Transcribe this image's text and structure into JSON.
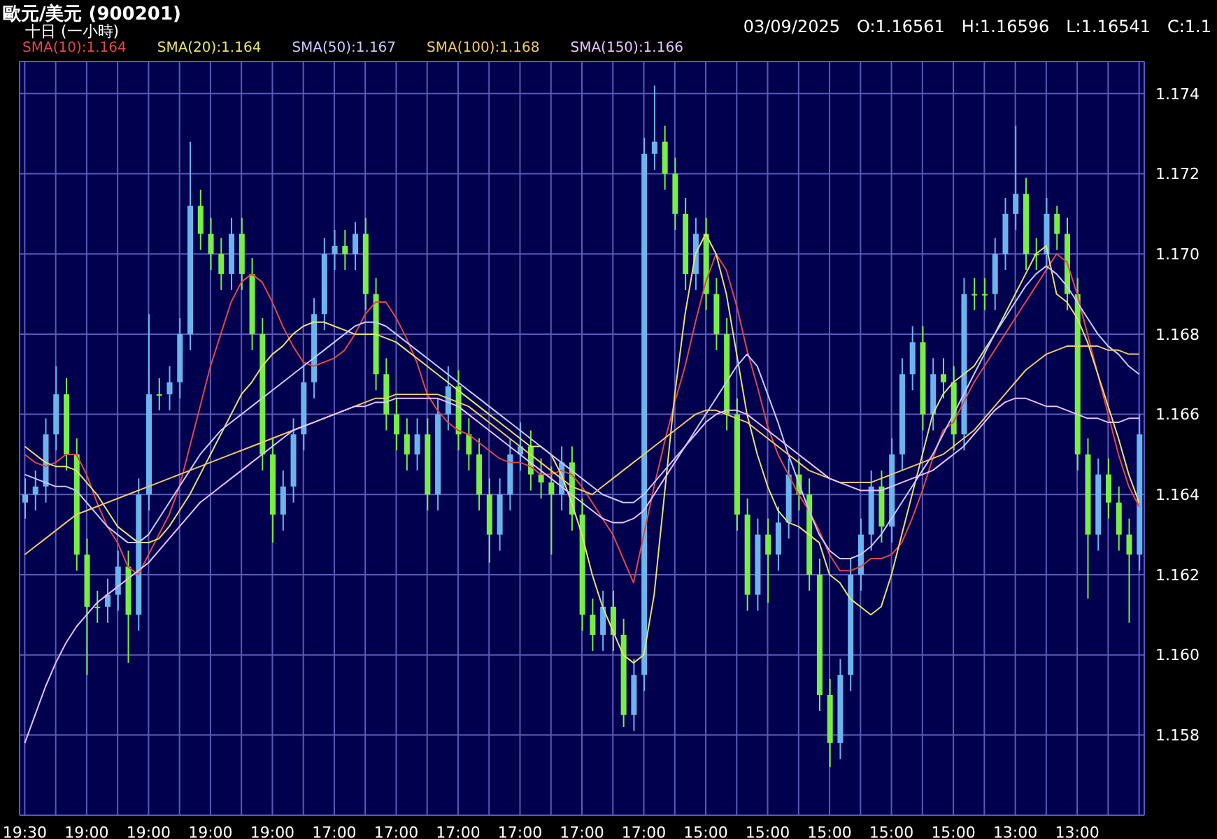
{
  "chart_data": {
    "type": "candlestick",
    "title": "歐元/美元 (900201)",
    "subtitle": "十日 (一小時)",
    "annotations": [
      "03/09/2025",
      "O:1.16561",
      "H:1.16596",
      "L:1.16541",
      "C:1.1"
    ],
    "categories": [
      "19:30",
      null,
      null,
      null,
      null,
      null,
      "19:00",
      null,
      null,
      null,
      null,
      null,
      "19:00",
      null,
      null,
      null,
      null,
      null,
      "19:00",
      null,
      null,
      null,
      null,
      null,
      "19:00",
      null,
      null,
      null,
      null,
      null,
      "17:00",
      null,
      null,
      null,
      null,
      null,
      "17:00",
      null,
      null,
      null,
      null,
      null,
      "17:00",
      null,
      null,
      null,
      null,
      null,
      "17:00",
      null,
      null,
      null,
      null,
      null,
      "17:00",
      null,
      null,
      null,
      null,
      null,
      "17:00",
      null,
      null,
      null,
      null,
      null,
      "15:00",
      null,
      null,
      null,
      null,
      null,
      "15:00",
      null,
      null,
      null,
      null,
      null,
      "15:00",
      null,
      null,
      null,
      null,
      null,
      "15:00",
      null,
      null,
      null,
      null,
      null,
      "15:00",
      null,
      null,
      null,
      null,
      null,
      "13:00",
      null,
      null,
      null,
      null,
      null,
      "13:00",
      null,
      null,
      null,
      null,
      null,
      null
    ],
    "ohlc": [
      [
        1.1638,
        1.1644,
        1.1634,
        1.164
      ],
      [
        1.164,
        1.1646,
        1.1636,
        1.1642
      ],
      [
        1.1642,
        1.1659,
        1.1638,
        1.1655
      ],
      [
        1.1655,
        1.1672,
        1.1651,
        1.1665
      ],
      [
        1.1665,
        1.1669,
        1.1646,
        1.165
      ],
      [
        1.165,
        1.1654,
        1.1621,
        1.1625
      ],
      [
        1.1625,
        1.1629,
        1.1595,
        1.1612
      ],
      [
        1.1612,
        1.1616,
        1.1608,
        1.1612
      ],
      [
        1.1612,
        1.1619,
        1.1608,
        1.1615
      ],
      [
        1.1615,
        1.1626,
        1.1611,
        1.1622
      ],
      [
        1.1622,
        1.1626,
        1.1598,
        1.161
      ],
      [
        1.161,
        1.1644,
        1.1606,
        1.164
      ],
      [
        1.164,
        1.1685,
        1.1636,
        1.1665
      ],
      [
        1.1665,
        1.1669,
        1.1661,
        1.1665
      ],
      [
        1.1665,
        1.1672,
        1.1661,
        1.1668
      ],
      [
        1.1668,
        1.1684,
        1.1664,
        1.168
      ],
      [
        1.168,
        1.1728,
        1.1676,
        1.1712
      ],
      [
        1.1712,
        1.1716,
        1.1701,
        1.1705
      ],
      [
        1.1705,
        1.1709,
        1.1696,
        1.17
      ],
      [
        1.17,
        1.1704,
        1.1691,
        1.1695
      ],
      [
        1.1695,
        1.1709,
        1.1691,
        1.1705
      ],
      [
        1.1705,
        1.1709,
        1.1691,
        1.1695
      ],
      [
        1.1695,
        1.1699,
        1.1676,
        1.168
      ],
      [
        1.168,
        1.1684,
        1.1646,
        1.165
      ],
      [
        1.165,
        1.1654,
        1.1628,
        1.1635
      ],
      [
        1.1635,
        1.1646,
        1.1631,
        1.1642
      ],
      [
        1.1642,
        1.1659,
        1.1638,
        1.1655
      ],
      [
        1.1655,
        1.1672,
        1.1651,
        1.1668
      ],
      [
        1.1668,
        1.1689,
        1.1664,
        1.1685
      ],
      [
        1.1685,
        1.1704,
        1.1681,
        1.17
      ],
      [
        1.17,
        1.1706,
        1.1696,
        1.1702
      ],
      [
        1.1702,
        1.1706,
        1.1696,
        1.17
      ],
      [
        1.17,
        1.1708,
        1.1696,
        1.1705
      ],
      [
        1.1705,
        1.1709,
        1.1686,
        1.169
      ],
      [
        1.169,
        1.1694,
        1.1666,
        1.167
      ],
      [
        1.167,
        1.1674,
        1.1656,
        1.166
      ],
      [
        1.166,
        1.1664,
        1.1651,
        1.1655
      ],
      [
        1.1655,
        1.1659,
        1.1646,
        1.165
      ],
      [
        1.165,
        1.1659,
        1.1646,
        1.1655
      ],
      [
        1.1655,
        1.1659,
        1.1636,
        1.164
      ],
      [
        1.164,
        1.1664,
        1.1636,
        1.166
      ],
      [
        1.166,
        1.1672,
        1.1656,
        1.1667
      ],
      [
        1.1667,
        1.1671,
        1.1651,
        1.1655
      ],
      [
        1.1655,
        1.1659,
        1.1646,
        1.165
      ],
      [
        1.165,
        1.1654,
        1.1636,
        1.164
      ],
      [
        1.164,
        1.1644,
        1.1623,
        1.163
      ],
      [
        1.163,
        1.1644,
        1.1626,
        1.164
      ],
      [
        1.164,
        1.1654,
        1.1636,
        1.165
      ],
      [
        1.165,
        1.1658,
        1.1646,
        1.1652
      ],
      [
        1.1652,
        1.1656,
        1.1641,
        1.1645
      ],
      [
        1.1645,
        1.1649,
        1.1639,
        1.1643
      ],
      [
        1.1643,
        1.1647,
        1.1625,
        1.164
      ],
      [
        1.164,
        1.1652,
        1.1636,
        1.1648
      ],
      [
        1.1648,
        1.1652,
        1.1631,
        1.1635
      ],
      [
        1.1635,
        1.1639,
        1.1606,
        1.161
      ],
      [
        1.161,
        1.1614,
        1.1601,
        1.1605
      ],
      [
        1.1605,
        1.1616,
        1.1601,
        1.1612
      ],
      [
        1.1612,
        1.1616,
        1.1601,
        1.1605
      ],
      [
        1.1605,
        1.1609,
        1.1582,
        1.1585
      ],
      [
        1.1585,
        1.1599,
        1.1581,
        1.1595
      ],
      [
        1.1595,
        1.1729,
        1.1591,
        1.1725
      ],
      [
        1.1725,
        1.1742,
        1.1721,
        1.1728
      ],
      [
        1.1728,
        1.1732,
        1.1716,
        1.172
      ],
      [
        1.172,
        1.1724,
        1.1706,
        1.171
      ],
      [
        1.171,
        1.1714,
        1.1691,
        1.1695
      ],
      [
        1.1695,
        1.1709,
        1.1691,
        1.1705
      ],
      [
        1.1705,
        1.1709,
        1.1686,
        1.169
      ],
      [
        1.169,
        1.1694,
        1.1676,
        1.168
      ],
      [
        1.168,
        1.1684,
        1.1656,
        1.166
      ],
      [
        1.166,
        1.1664,
        1.1631,
        1.1635
      ],
      [
        1.1635,
        1.1639,
        1.1611,
        1.1615
      ],
      [
        1.1615,
        1.1634,
        1.1611,
        1.163
      ],
      [
        1.163,
        1.1634,
        1.1613,
        1.1625
      ],
      [
        1.1625,
        1.1637,
        1.1621,
        1.1633
      ],
      [
        1.1633,
        1.1649,
        1.1629,
        1.1645
      ],
      [
        1.1645,
        1.1649,
        1.1636,
        1.164
      ],
      [
        1.164,
        1.1644,
        1.1616,
        1.162
      ],
      [
        1.162,
        1.1624,
        1.1586,
        1.159
      ],
      [
        1.159,
        1.1594,
        1.1572,
        1.1578
      ],
      [
        1.1578,
        1.1599,
        1.1574,
        1.1595
      ],
      [
        1.1595,
        1.1624,
        1.1591,
        1.162
      ],
      [
        1.162,
        1.1634,
        1.1616,
        1.163
      ],
      [
        1.163,
        1.1646,
        1.1626,
        1.1642
      ],
      [
        1.1642,
        1.1646,
        1.1628,
        1.1632
      ],
      [
        1.1632,
        1.1654,
        1.1628,
        1.165
      ],
      [
        1.165,
        1.1674,
        1.1646,
        1.167
      ],
      [
        1.167,
        1.1682,
        1.1666,
        1.1678
      ],
      [
        1.1678,
        1.1682,
        1.1656,
        1.166
      ],
      [
        1.166,
        1.1674,
        1.1656,
        1.167
      ],
      [
        1.167,
        1.1674,
        1.1664,
        1.1668
      ],
      [
        1.1668,
        1.1672,
        1.1651,
        1.1655
      ],
      [
        1.1655,
        1.1694,
        1.1651,
        1.169
      ],
      [
        1.169,
        1.1694,
        1.1686,
        1.169
      ],
      [
        1.169,
        1.1694,
        1.1686,
        1.169
      ],
      [
        1.169,
        1.1704,
        1.1686,
        1.17
      ],
      [
        1.17,
        1.1714,
        1.1696,
        1.171
      ],
      [
        1.171,
        1.1732,
        1.1706,
        1.1715
      ],
      [
        1.1715,
        1.1719,
        1.1696,
        1.17
      ],
      [
        1.17,
        1.1704,
        1.1696,
        1.17
      ],
      [
        1.17,
        1.1714,
        1.1696,
        1.171
      ],
      [
        1.171,
        1.1712,
        1.1701,
        1.1705
      ],
      [
        1.1705,
        1.1709,
        1.1686,
        1.169
      ],
      [
        1.169,
        1.1694,
        1.1646,
        1.165
      ],
      [
        1.165,
        1.1654,
        1.1614,
        1.163
      ],
      [
        1.163,
        1.1649,
        1.1626,
        1.1645
      ],
      [
        1.1645,
        1.1649,
        1.1634,
        1.1638
      ],
      [
        1.1638,
        1.1642,
        1.1626,
        1.163
      ],
      [
        1.163,
        1.1634,
        1.1608,
        1.1625
      ],
      [
        1.1625,
        1.166,
        1.1621,
        1.1655
      ]
    ],
    "colors": [
      "#6cb4ee",
      "#6cb4ee",
      "#6cb4ee",
      "#6cb4ee",
      "#78ee46",
      "#78ee46",
      "#78ee46",
      "#78ee46",
      "#6cb4ee",
      "#6cb4ee",
      "#78ee46",
      "#6cb4ee",
      "#6cb4ee",
      "#78ee46",
      "#6cb4ee",
      "#6cb4ee",
      "#6cb4ee",
      "#78ee46",
      "#78ee46",
      "#78ee46",
      "#6cb4ee",
      "#78ee46",
      "#78ee46",
      "#78ee46",
      "#78ee46",
      "#6cb4ee",
      "#6cb4ee",
      "#6cb4ee",
      "#6cb4ee",
      "#6cb4ee",
      "#6cb4ee",
      "#78ee46",
      "#6cb4ee",
      "#78ee46",
      "#78ee46",
      "#78ee46",
      "#78ee46",
      "#78ee46",
      "#6cb4ee",
      "#78ee46",
      "#6cb4ee",
      "#6cb4ee",
      "#78ee46",
      "#78ee46",
      "#78ee46",
      "#78ee46",
      "#6cb4ee",
      "#6cb4ee",
      "#6cb4ee",
      "#78ee46",
      "#78ee46",
      "#78ee46",
      "#6cb4ee",
      "#78ee46",
      "#78ee46",
      "#78ee46",
      "#6cb4ee",
      "#78ee46",
      "#78ee46",
      "#6cb4ee",
      "#6cb4ee",
      "#6cb4ee",
      "#78ee46",
      "#78ee46",
      "#78ee46",
      "#6cb4ee",
      "#78ee46",
      "#78ee46",
      "#78ee46",
      "#78ee46",
      "#78ee46",
      "#6cb4ee",
      "#78ee46",
      "#6cb4ee",
      "#6cb4ee",
      "#78ee46",
      "#78ee46",
      "#78ee46",
      "#78ee46",
      "#6cb4ee",
      "#6cb4ee",
      "#6cb4ee",
      "#6cb4ee",
      "#78ee46",
      "#6cb4ee",
      "#6cb4ee",
      "#6cb4ee",
      "#78ee46",
      "#6cb4ee",
      "#78ee46",
      "#78ee46",
      "#6cb4ee",
      "#78ee46",
      "#78ee46",
      "#6cb4ee",
      "#6cb4ee",
      "#6cb4ee",
      "#78ee46",
      "#78ee46",
      "#6cb4ee",
      "#78ee46",
      "#78ee46",
      "#78ee46",
      "#78ee46",
      "#6cb4ee",
      "#78ee46",
      "#78ee46",
      "#78ee46",
      "#6cb4ee"
    ],
    "series": [
      {
        "type": "line",
        "name": "SMA(10):1.164",
        "color": "#e04848",
        "values": [
          1.165,
          1.1648,
          1.1647,
          1.1648,
          1.165,
          1.165,
          1.1645,
          1.1638,
          1.1632,
          1.1628,
          1.1622,
          1.162,
          1.1625,
          1.163,
          1.1635,
          1.1642,
          1.1652,
          1.1662,
          1.1672,
          1.168,
          1.1688,
          1.1693,
          1.1695,
          1.1693,
          1.1688,
          1.1682,
          1.1677,
          1.1673,
          1.1672,
          1.1673,
          1.1674,
          1.1676,
          1.168,
          1.1685,
          1.1688,
          1.1688,
          1.1684,
          1.1679,
          1.1673,
          1.1665,
          1.1661,
          1.1658,
          1.1656,
          1.1655,
          1.1653,
          1.1651,
          1.1649,
          1.1648,
          1.1648,
          1.1647,
          1.1645,
          1.1645,
          1.1646,
          1.1645,
          1.1642,
          1.1638,
          1.1634,
          1.163,
          1.1624,
          1.1618,
          1.163,
          1.1642,
          1.1653,
          1.1663,
          1.1672,
          1.1683,
          1.1693,
          1.17,
          1.1696,
          1.1687,
          1.1676,
          1.1667,
          1.1657,
          1.165,
          1.1645,
          1.164,
          1.1636,
          1.1631,
          1.1625,
          1.1621,
          1.1621,
          1.1622,
          1.1624,
          1.1624,
          1.1625,
          1.1628,
          1.1634,
          1.1641,
          1.1649,
          1.1656,
          1.1658,
          1.1663,
          1.1668,
          1.1672,
          1.1676,
          1.168,
          1.1684,
          1.1688,
          1.1692,
          1.1696,
          1.17,
          1.1698,
          1.169,
          1.168,
          1.167,
          1.166,
          1.165,
          1.1642,
          1.1637
        ]
      },
      {
        "type": "line",
        "name": "SMA(20):1.164",
        "color": "#e8e070",
        "values": [
          1.1652,
          1.165,
          1.1648,
          1.1647,
          1.1647,
          1.1646,
          1.1643,
          1.164,
          1.1636,
          1.1632,
          1.163,
          1.1628,
          1.1628,
          1.1629,
          1.1632,
          1.1636,
          1.164,
          1.1645,
          1.165,
          1.1655,
          1.166,
          1.1665,
          1.1668,
          1.1672,
          1.1675,
          1.1677,
          1.168,
          1.1682,
          1.1683,
          1.1683,
          1.1682,
          1.1681,
          1.168,
          1.168,
          1.168,
          1.1679,
          1.1678,
          1.1676,
          1.1674,
          1.1672,
          1.167,
          1.1668,
          1.1666,
          1.1664,
          1.1662,
          1.166,
          1.1658,
          1.1656,
          1.1654,
          1.1652,
          1.1652,
          1.165,
          1.1645,
          1.1638,
          1.163,
          1.162,
          1.1612,
          1.1606,
          1.16,
          1.1598,
          1.16,
          1.1615,
          1.164,
          1.1665,
          1.1685,
          1.17,
          1.1705,
          1.17,
          1.169,
          1.1675,
          1.166,
          1.165,
          1.1642,
          1.1636,
          1.1633,
          1.1632,
          1.163,
          1.1628,
          1.162,
          1.1618,
          1.1614,
          1.1612,
          1.161,
          1.1612,
          1.162,
          1.163,
          1.164,
          1.165,
          1.166,
          1.1665,
          1.1668,
          1.167,
          1.1672,
          1.1676,
          1.168,
          1.1685,
          1.169,
          1.1695,
          1.17,
          1.1702,
          1.169,
          1.1688,
          1.1684,
          1.1678,
          1.167,
          1.1662,
          1.1654,
          1.1645,
          1.1638
        ]
      },
      {
        "type": "line",
        "name": "SMA(50):1.167",
        "color": "#c8c8ff",
        "values": [
          1.1645,
          1.1644,
          1.1643,
          1.1642,
          1.1642,
          1.1641,
          1.1638,
          1.1635,
          1.1632,
          1.163,
          1.1628,
          1.1628,
          1.163,
          1.1634,
          1.1638,
          1.1642,
          1.1646,
          1.165,
          1.1653,
          1.1656,
          1.1658,
          1.166,
          1.1662,
          1.1664,
          1.1666,
          1.1668,
          1.167,
          1.1672,
          1.1674,
          1.1676,
          1.1678,
          1.168,
          1.1682,
          1.1683,
          1.1683,
          1.1682,
          1.168,
          1.1678,
          1.1676,
          1.1674,
          1.1672,
          1.167,
          1.1668,
          1.1666,
          1.1664,
          1.1662,
          1.166,
          1.1658,
          1.1656,
          1.1654,
          1.1652,
          1.165,
          1.1648,
          1.1646,
          1.1644,
          1.1642,
          1.164,
          1.1639,
          1.1638,
          1.1638,
          1.164,
          1.1643,
          1.1646,
          1.1649,
          1.1652,
          1.1656,
          1.166,
          1.1664,
          1.1668,
          1.1672,
          1.1675,
          1.1672,
          1.1665,
          1.1658,
          1.165,
          1.1643,
          1.1636,
          1.163,
          1.1626,
          1.1624,
          1.1624,
          1.1625,
          1.1627,
          1.163,
          1.1634,
          1.1638,
          1.1642,
          1.1646,
          1.165,
          1.1655,
          1.166,
          1.1665,
          1.167,
          1.1675,
          1.168,
          1.1684,
          1.1688,
          1.1692,
          1.1695,
          1.1697,
          1.1695,
          1.1692,
          1.1688,
          1.1684,
          1.168,
          1.1677,
          1.1675,
          1.1672,
          1.167
        ]
      },
      {
        "type": "line",
        "name": "SMA(100):1.168",
        "color": "#f0c868",
        "values": [
          1.1625,
          1.1627,
          1.1629,
          1.1631,
          1.1633,
          1.1635,
          1.1636,
          1.1637,
          1.1638,
          1.1639,
          1.164,
          1.1641,
          1.1642,
          1.1643,
          1.1644,
          1.1645,
          1.1646,
          1.1647,
          1.1648,
          1.1649,
          1.165,
          1.1651,
          1.1652,
          1.1653,
          1.1654,
          1.1655,
          1.1656,
          1.1657,
          1.1658,
          1.1659,
          1.166,
          1.1661,
          1.1662,
          1.1663,
          1.1664,
          1.1664,
          1.1665,
          1.1665,
          1.1665,
          1.1665,
          1.1665,
          1.1664,
          1.1663,
          1.1662,
          1.166,
          1.1658,
          1.1656,
          1.1654,
          1.1652,
          1.165,
          1.1648,
          1.1646,
          1.1644,
          1.1642,
          1.1641,
          1.164,
          1.1642,
          1.1644,
          1.1646,
          1.1648,
          1.165,
          1.1652,
          1.1654,
          1.1656,
          1.1658,
          1.166,
          1.1661,
          1.1661,
          1.166,
          1.1659,
          1.1658,
          1.1656,
          1.1654,
          1.1652,
          1.165,
          1.1648,
          1.1646,
          1.1645,
          1.1644,
          1.1643,
          1.1643,
          1.1643,
          1.1643,
          1.1644,
          1.1645,
          1.1646,
          1.1647,
          1.1648,
          1.1649,
          1.165,
          1.1652,
          1.1654,
          1.1656,
          1.1659,
          1.1662,
          1.1665,
          1.1668,
          1.1671,
          1.1673,
          1.1675,
          1.1676,
          1.1677,
          1.1677,
          1.1677,
          1.1677,
          1.1676,
          1.1676,
          1.1675,
          1.1675
        ]
      },
      {
        "type": "line",
        "name": "SMA(150):1.166",
        "color": "#e8c0ff",
        "values": [
          1.1578,
          1.1585,
          1.1592,
          1.1598,
          1.1603,
          1.1607,
          1.161,
          1.1613,
          1.1615,
          1.1617,
          1.1619,
          1.1621,
          1.1623,
          1.1626,
          1.1629,
          1.1632,
          1.1635,
          1.1638,
          1.164,
          1.1642,
          1.1644,
          1.1646,
          1.1648,
          1.165,
          1.1652,
          1.1654,
          1.1656,
          1.1657,
          1.1658,
          1.1659,
          1.166,
          1.1661,
          1.1662,
          1.1662,
          1.1663,
          1.1663,
          1.1664,
          1.1664,
          1.1664,
          1.1664,
          1.1664,
          1.1663,
          1.1662,
          1.166,
          1.1658,
          1.1656,
          1.1654,
          1.1652,
          1.165,
          1.1648,
          1.1646,
          1.1644,
          1.1642,
          1.164,
          1.1638,
          1.1636,
          1.1634,
          1.1633,
          1.1633,
          1.1634,
          1.1636,
          1.164,
          1.1644,
          1.1648,
          1.1652,
          1.1655,
          1.1658,
          1.166,
          1.1661,
          1.1661,
          1.166,
          1.1658,
          1.1656,
          1.1654,
          1.1652,
          1.165,
          1.1648,
          1.1646,
          1.1644,
          1.1643,
          1.1642,
          1.1641,
          1.1641,
          1.1641,
          1.1642,
          1.1643,
          1.1644,
          1.1645,
          1.1646,
          1.1648,
          1.165,
          1.1652,
          1.1655,
          1.1658,
          1.1661,
          1.1663,
          1.1664,
          1.1664,
          1.1663,
          1.1662,
          1.1662,
          1.1661,
          1.166,
          1.1659,
          1.1659,
          1.1658,
          1.1658,
          1.1659,
          1.1659
        ]
      }
    ],
    "ylim": [
      1.156,
      1.1748
    ],
    "yticks": [
      1.158,
      {
        "value": 1.16,
        "label": "1.160"
      },
      1.162,
      1.164,
      1.166,
      1.168,
      {
        "value": 1.17,
        "label": "1.170"
      },
      1.172,
      1.174
    ],
    "grid": true,
    "legend": "top left"
  }
}
